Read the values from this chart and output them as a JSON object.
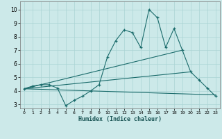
{
  "xlabel": "Humidex (Indice chaleur)",
  "background_color": "#cce9e9",
  "grid_color": "#aad4d4",
  "line_color": "#1a6b6b",
  "xlim": [
    -0.5,
    23.5
  ],
  "ylim": [
    2.7,
    10.6
  ],
  "yticks": [
    3,
    4,
    5,
    6,
    7,
    8,
    9,
    10
  ],
  "xticks": [
    0,
    1,
    2,
    3,
    4,
    5,
    6,
    7,
    8,
    9,
    10,
    11,
    12,
    13,
    14,
    15,
    16,
    17,
    18,
    19,
    20,
    21,
    22,
    23
  ],
  "line1_x": [
    0,
    1,
    2,
    3,
    4,
    5,
    6,
    7,
    8,
    9,
    10,
    11,
    12,
    13,
    14,
    15,
    16,
    17,
    18,
    19,
    20,
    21,
    22,
    23
  ],
  "line1_y": [
    4.15,
    4.35,
    4.45,
    4.45,
    4.2,
    2.9,
    3.3,
    3.6,
    4.0,
    4.45,
    6.5,
    7.7,
    8.5,
    8.3,
    7.2,
    10.0,
    9.4,
    7.2,
    8.6,
    7.0,
    5.4,
    4.8,
    4.2,
    3.6
  ],
  "line2_x": [
    0,
    23
  ],
  "line2_y": [
    4.15,
    3.7
  ],
  "line3_x": [
    0,
    19
  ],
  "line3_y": [
    4.15,
    7.0
  ],
  "line4_x": [
    0,
    20
  ],
  "line4_y": [
    4.15,
    5.4
  ]
}
